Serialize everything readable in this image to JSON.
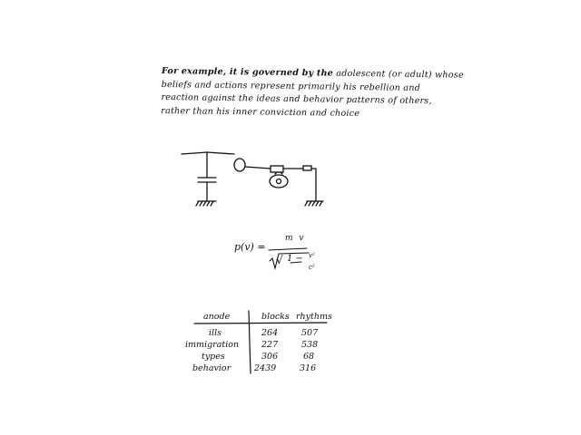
{
  "paragraph": {
    "line1_bold": "For example, it is governed by the",
    "line1_rest": " adolescent (or adult) whose",
    "line2": "beliefs and actions represent primarily his rebellion and",
    "line3": "reaction against the ideas and behavior patterns of others,",
    "line4": "rather than his inner conviction and choice"
  },
  "formula": {
    "lhs": "p(v) =",
    "numerator": "m v",
    "radical": "√",
    "den_text": "1 −",
    "frac_num": "v²",
    "frac_den": "c²"
  },
  "table": {
    "headers": [
      "anode",
      "blocks",
      "rhythms"
    ],
    "rows": [
      {
        "label": "ills",
        "blocks": "264",
        "rhythms": "507"
      },
      {
        "label": "immigration",
        "blocks": "227",
        "rhythms": "538"
      },
      {
        "label": "types",
        "blocks": "306",
        "rhythms": "68"
      },
      {
        "label": "behavior",
        "blocks": "2439",
        "rhythms": "316"
      }
    ]
  },
  "colors": {
    "ink": "#111111",
    "background": "#ffffff"
  }
}
